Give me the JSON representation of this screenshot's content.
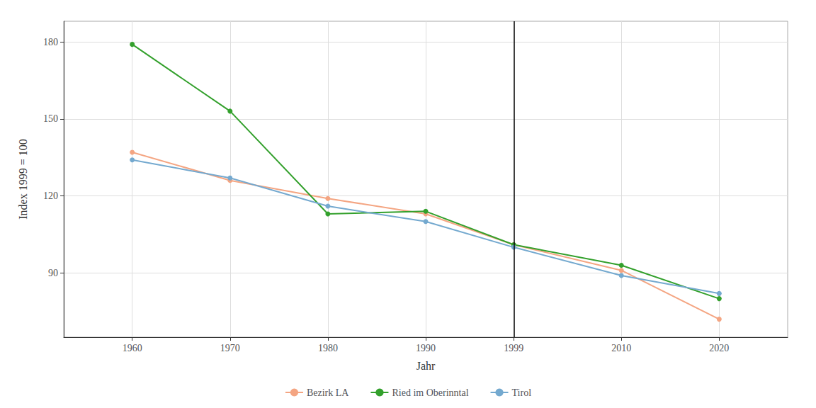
{
  "chart_data": {
    "type": "line",
    "xlabel": "Jahr",
    "ylabel": "Index 1999 = 100",
    "x": [
      1960,
      1970,
      1980,
      1990,
      1999,
      2010,
      2020
    ],
    "series": [
      {
        "name": "Bezirk LA",
        "color": "#F4A582",
        "values": [
          137,
          126,
          119,
          113,
          101,
          91,
          72
        ]
      },
      {
        "name": "Ried im Oberinntal",
        "color": "#33A02C",
        "values": [
          179,
          153,
          113,
          114,
          101,
          93,
          80
        ]
      },
      {
        "name": "Tirol",
        "color": "#74A9CF",
        "values": [
          134,
          127,
          116,
          110,
          100,
          89,
          82
        ]
      }
    ],
    "xlim": [
      1953,
      2027
    ],
    "xticks": [
      1960,
      1970,
      1980,
      1990,
      1999,
      2010,
      2020
    ],
    "ylim": [
      65,
      188
    ],
    "yticks": [
      90,
      120,
      150,
      180
    ],
    "vlines": [
      {
        "x": 1999,
        "color": "#000000"
      }
    ],
    "marker": "circle",
    "grid": true,
    "legend": "bottom"
  }
}
